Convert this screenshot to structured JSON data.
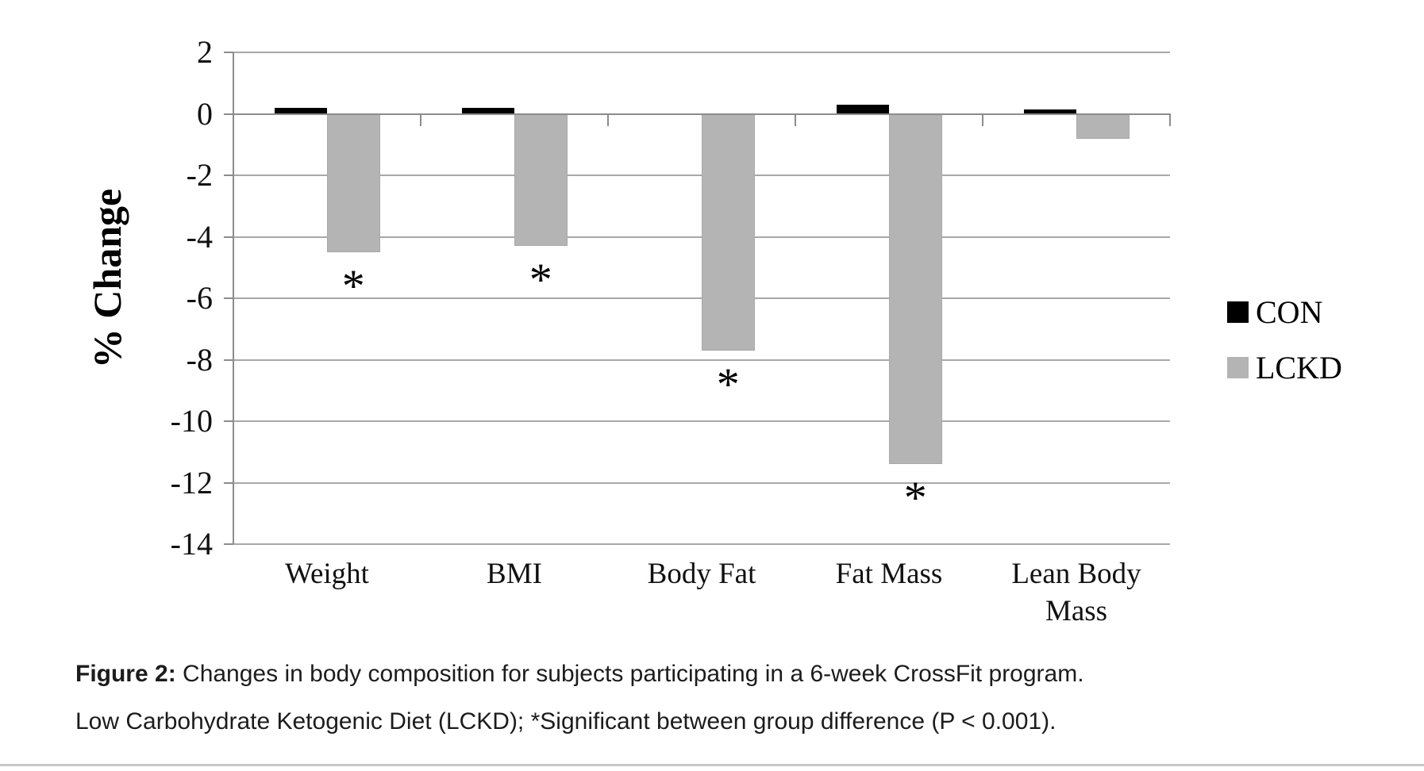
{
  "figure_caption": {
    "label": "Figure 2:",
    "line1_rest": " Changes in body composition for subjects participating in a 6-week CrossFit program.",
    "line2": "Low Carbohydrate Ketogenic Diet (LCKD); *Significant between group difference (P < 0.001)."
  },
  "legend": {
    "items": [
      {
        "label": "CON",
        "color": "#000000"
      },
      {
        "label": "LCKD",
        "color": "#b4b4b4"
      }
    ]
  },
  "chart_data": {
    "type": "bar",
    "title": "",
    "ylabel": "% Change",
    "xlabel": "",
    "categories": [
      "Weight",
      "BMI",
      "Body Fat",
      "Fat Mass",
      "Lean Body Mass"
    ],
    "series": [
      {
        "name": "CON",
        "color": "#000000",
        "values": [
          0.2,
          0.2,
          0.0,
          0.3,
          0.15
        ]
      },
      {
        "name": "LCKD",
        "color": "#b4b4b4",
        "values": [
          -4.5,
          -4.3,
          -7.7,
          -11.4,
          -0.8
        ]
      }
    ],
    "significance": {
      "symbol": "*",
      "series": "LCKD",
      "flags": [
        true,
        true,
        true,
        true,
        false
      ]
    },
    "ylim": [
      -14,
      2
    ],
    "yticks": [
      2,
      0,
      -2,
      -4,
      -6,
      -8,
      -10,
      -12,
      -14
    ],
    "grid": true,
    "legend_position": "right"
  },
  "style": {
    "gridline_color": "#a8a8a8",
    "axis_color": "#8c8c8c",
    "bar_gray_border": "#a9a9a9",
    "divider_color": "#c3c7ca"
  }
}
